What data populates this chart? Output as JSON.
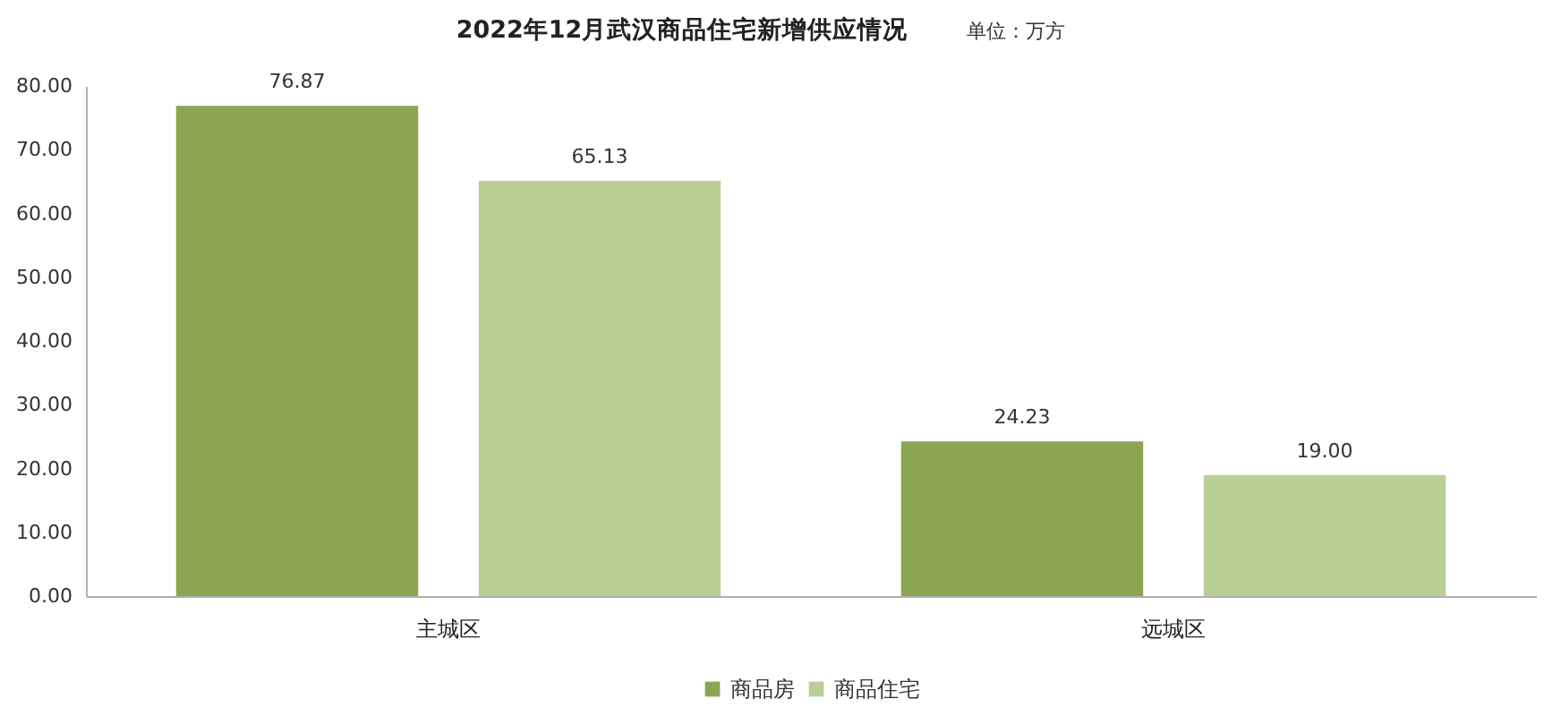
{
  "chart_data": {
    "type": "bar",
    "title": "2022年12月武汉商品住宅新增供应情况",
    "annotations": [
      "单位：万方"
    ],
    "categories": [
      "主城区",
      "远城区"
    ],
    "series": [
      {
        "name": "商品房",
        "color": "#8ba552",
        "values": [
          76.87,
          24.23
        ],
        "value_labels": [
          "76.87",
          "24.23"
        ]
      },
      {
        "name": "商品住宅",
        "color": "#bacf96",
        "values": [
          65.13,
          19.0
        ],
        "value_labels": [
          "65.13",
          "19.00"
        ]
      }
    ],
    "ylim": [
      0,
      80
    ],
    "yticks": [
      {
        "value": 0,
        "label": "0.00"
      },
      {
        "value": 10,
        "label": "10.00"
      },
      {
        "value": 20,
        "label": "20.00"
      },
      {
        "value": 30,
        "label": "30.00"
      },
      {
        "value": 40,
        "label": "40.00"
      },
      {
        "value": 50,
        "label": "50.00"
      },
      {
        "value": 60,
        "label": "60.00"
      },
      {
        "value": 70,
        "label": "70.00"
      },
      {
        "value": 80,
        "label": "80.00"
      }
    ],
    "grid": false,
    "legend": "bottom"
  }
}
